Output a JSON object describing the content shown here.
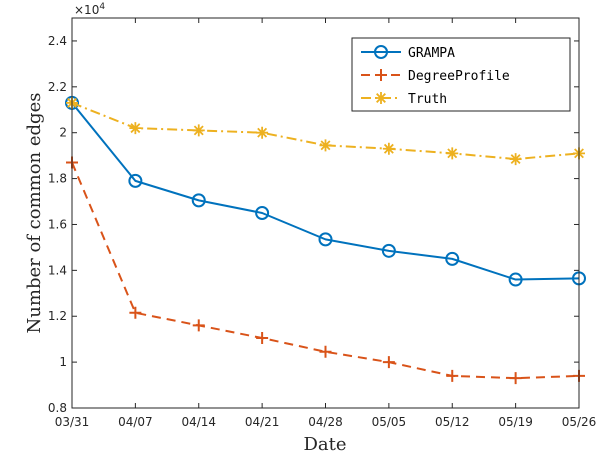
{
  "chart_data": {
    "type": "line",
    "x": [
      "03/31",
      "04/07",
      "04/14",
      "04/21",
      "04/28",
      "05/05",
      "05/12",
      "05/19",
      "05/26"
    ],
    "series": [
      {
        "name": "GRAMPA",
        "color": "#0072BD",
        "linestyle": "solid",
        "marker": "circle",
        "values": [
          2.13,
          1.79,
          1.705,
          1.65,
          1.535,
          1.485,
          1.45,
          1.36,
          1.365
        ]
      },
      {
        "name": "DegreeProfile",
        "color": "#D95319",
        "linestyle": "dashed",
        "marker": "plus",
        "values": [
          1.87,
          1.215,
          1.16,
          1.105,
          1.045,
          1.0,
          0.94,
          0.93,
          0.94
        ]
      },
      {
        "name": "Truth",
        "color": "#EDB120",
        "linestyle": "dash-dot",
        "marker": "asterisk",
        "values": [
          2.13,
          2.02,
          2.01,
          2.0,
          1.945,
          1.93,
          1.91,
          1.885,
          1.91
        ]
      }
    ],
    "xlabel": "Date",
    "ylabel": "Number of common edges",
    "ylim": [
      0.8,
      2.5
    ],
    "yticks": [
      "0.8",
      "1",
      "1.2",
      "1.4",
      "1.6",
      "1.8",
      "2",
      "2.2",
      "2.4"
    ],
    "y_multiplier_base": "×10",
    "y_multiplier_exponent": "4",
    "grid": false,
    "legend_position": "top-right"
  }
}
